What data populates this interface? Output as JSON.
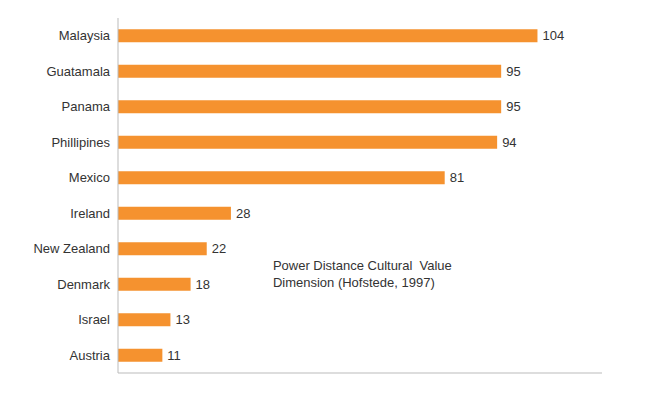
{
  "chart_data": {
    "type": "bar",
    "orientation": "horizontal",
    "categories": [
      "Malaysia",
      "Guatamala",
      "Panama",
      "Phillipines",
      "Mexico",
      "Ireland",
      "New Zealand",
      "Denmark",
      "Israel",
      "Austria"
    ],
    "values": [
      104,
      95,
      95,
      94,
      81,
      28,
      22,
      18,
      13,
      11
    ],
    "color": "#F5922F",
    "xlim": [
      0,
      120
    ],
    "xticks": [],
    "data_labels": true,
    "tick_labels": "y",
    "grid": false,
    "annotations": [
      "Power Distance Cultural  Value\nDimension (Hofstede, 1997)"
    ]
  }
}
